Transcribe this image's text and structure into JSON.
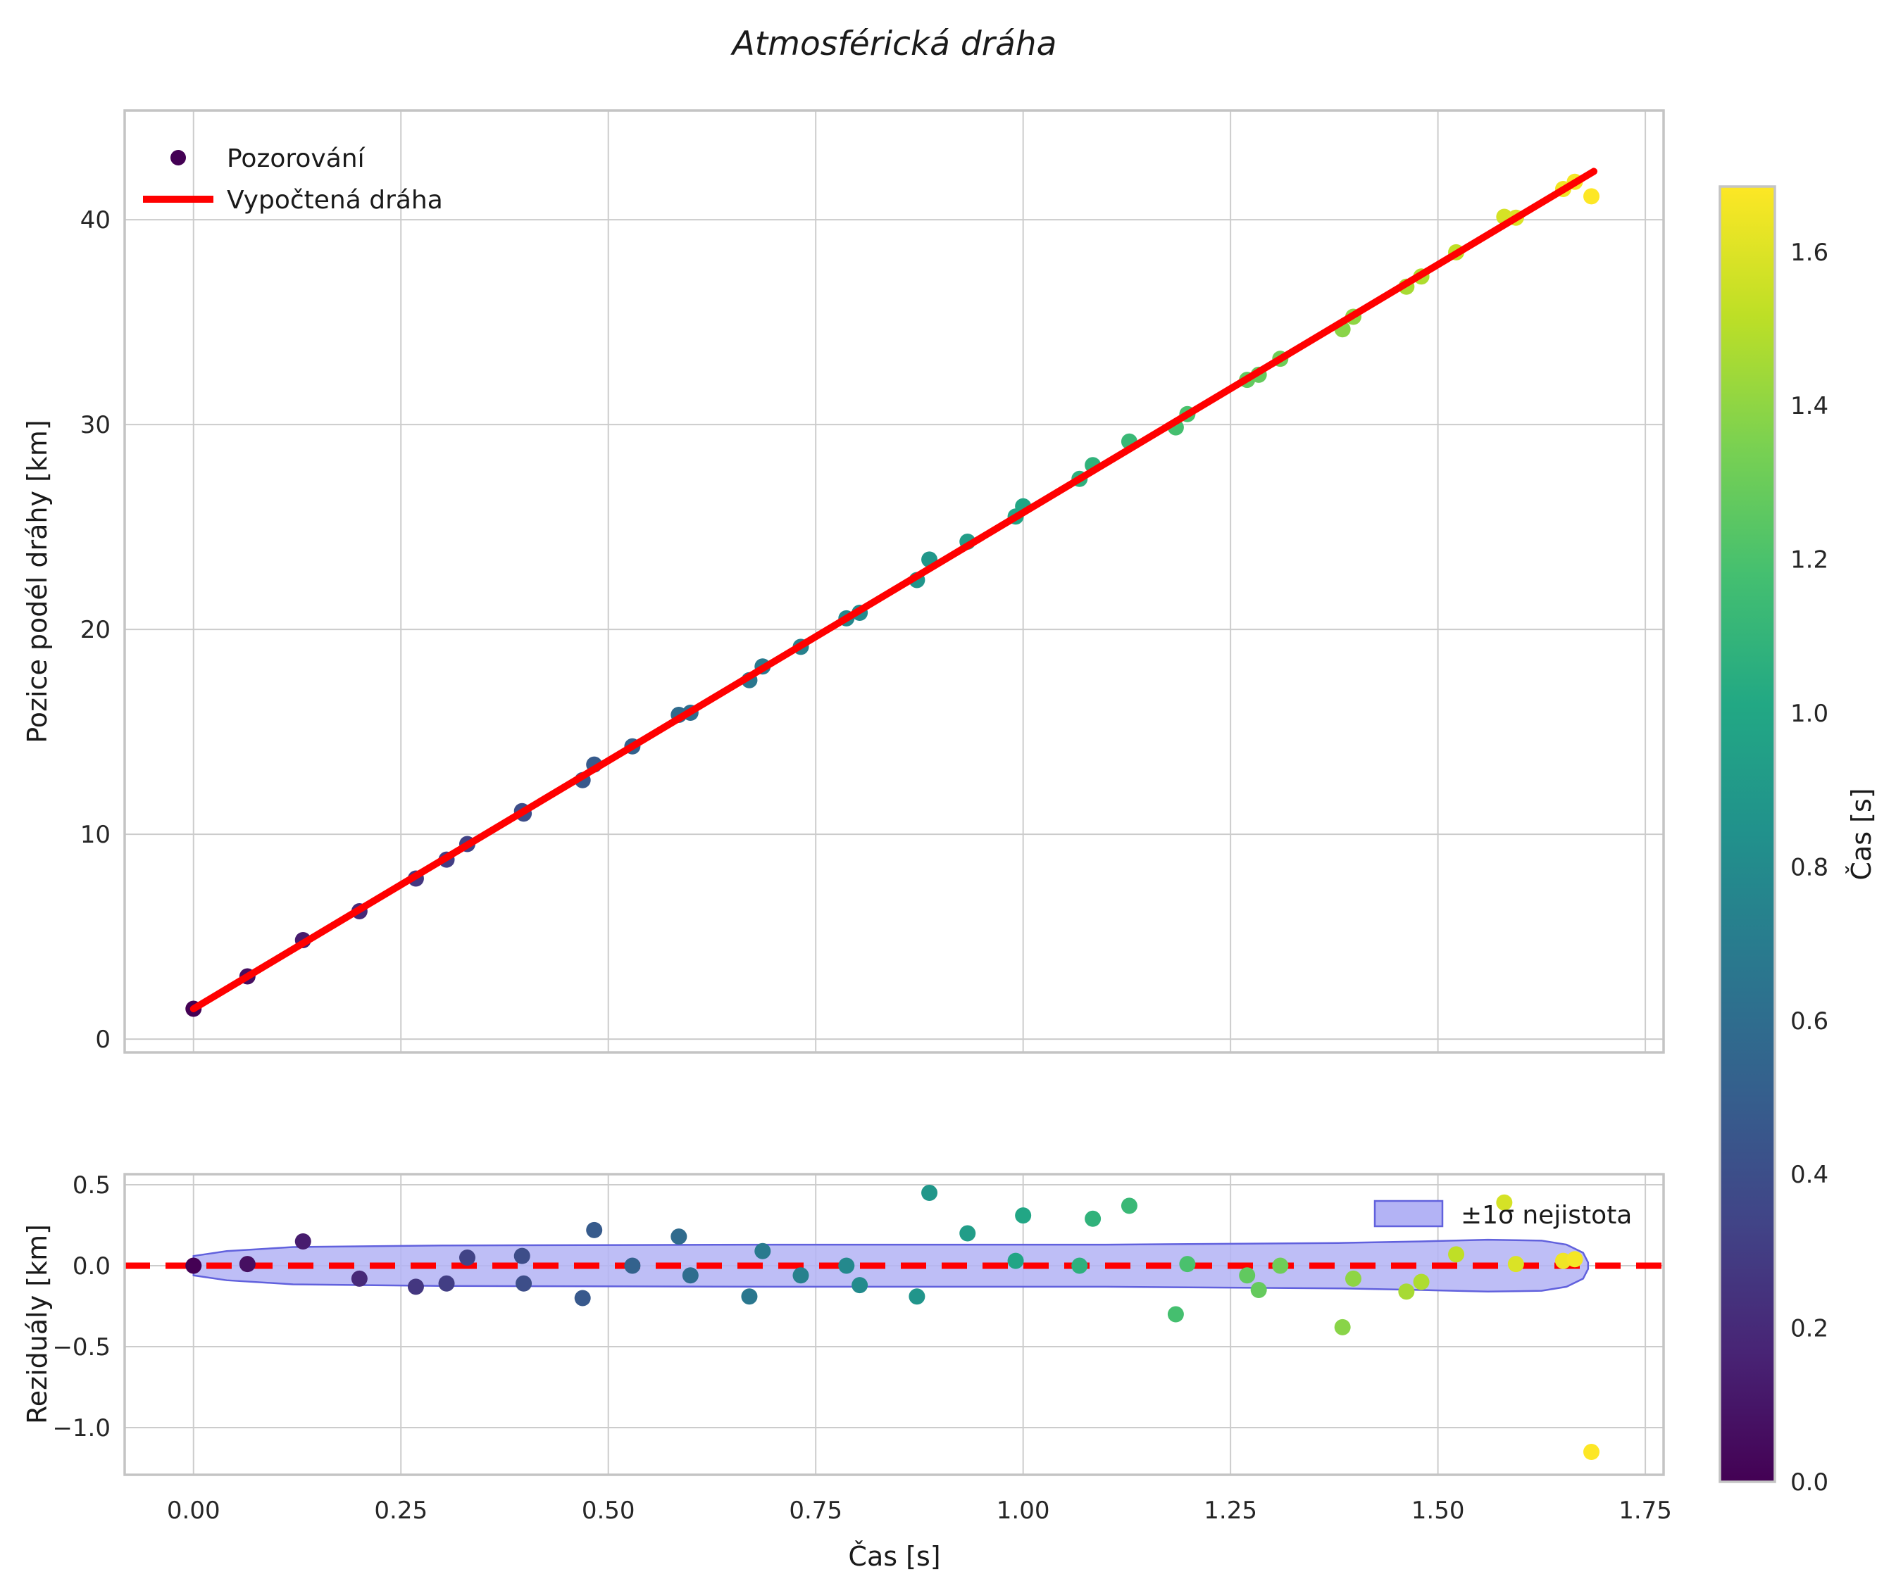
{
  "title": "Atmosférická dráha",
  "colorbar": {
    "label": "Čas [s]",
    "vmin": 0.0,
    "vmax": 1.685,
    "ticks": [
      {
        "value": 0.0,
        "label": "0.0"
      },
      {
        "value": 0.2,
        "label": "0.2"
      },
      {
        "value": 0.4,
        "label": "0.4"
      },
      {
        "value": 0.6,
        "label": "0.6"
      },
      {
        "value": 0.8,
        "label": "0.8"
      },
      {
        "value": 1.0,
        "label": "1.0"
      },
      {
        "value": 1.2,
        "label": "1.2"
      },
      {
        "value": 1.4,
        "label": "1.4"
      },
      {
        "value": 1.6,
        "label": "1.6"
      }
    ],
    "colormap": "viridis"
  },
  "colormap_stops": [
    "#440154",
    "#482475",
    "#414487",
    "#355f8d",
    "#2a788e",
    "#21918c",
    "#22a884",
    "#44bf70",
    "#7ad151",
    "#bddf26",
    "#fde725"
  ],
  "style": {
    "grid_color": "#cccccc",
    "spine_color": "#c4c4c4",
    "fit_line_color": "#ff0000",
    "zero_line_color": "#ff0000",
    "band_fill": "#b3b3f5",
    "band_edge": "#6161dd",
    "background": "#ffffff"
  },
  "chart_data": [
    {
      "id": "trajectory-plot",
      "type": "scatter",
      "title": "Atmosférická dráha",
      "xlabel": "",
      "ylabel": "Pozice podél dráhy [km]",
      "xlim": [
        -0.083,
        1.772
      ],
      "ylim": [
        -0.65,
        45.33
      ],
      "grid": true,
      "legend_position": "upper left",
      "xticks": {
        "values": [
          0.0,
          0.25,
          0.5,
          0.75,
          1.0,
          1.25,
          1.5,
          1.75
        ],
        "labels_visible": false
      },
      "yticks": {
        "values": [
          0,
          10,
          20,
          30,
          40
        ],
        "labels": [
          "0",
          "10",
          "20",
          "30",
          "40"
        ]
      },
      "series": [
        {
          "name": "Pozorování",
          "type": "scatter",
          "color_mode": "viridis-by-time",
          "x": [
            0.0,
            0.065,
            0.132,
            0.2,
            0.268,
            0.305,
            0.33,
            0.396,
            0.398,
            0.469,
            0.483,
            0.529,
            0.585,
            0.599,
            0.67,
            0.686,
            0.732,
            0.787,
            0.803,
            0.872,
            0.887,
            0.933,
            0.991,
            1.0,
            1.068,
            1.084,
            1.128,
            1.184,
            1.198,
            1.27,
            1.284,
            1.31,
            1.385,
            1.398,
            1.462,
            1.48,
            1.522,
            1.58,
            1.594,
            1.651,
            1.665,
            1.685
          ],
          "y": [
            1.48,
            3.06,
            4.83,
            6.24,
            7.84,
            8.76,
            9.52,
            11.13,
            11.01,
            12.64,
            13.4,
            14.29,
            15.83,
            15.93,
            17.52,
            18.19,
            19.15,
            20.54,
            20.81,
            22.41,
            23.41,
            24.28,
            25.51,
            26.01,
            27.35,
            28.02,
            29.17,
            29.86,
            30.51,
            32.18,
            32.43,
            33.21,
            34.65,
            35.26,
            36.73,
            37.23,
            38.41,
            40.14,
            40.1,
            41.5,
            41.85,
            41.14
          ]
        },
        {
          "name": "Vypočtená dráha",
          "type": "line",
          "color": "#ff0000",
          "x": [
            0.0,
            1.688
          ],
          "y": [
            1.48,
            42.36
          ]
        }
      ]
    },
    {
      "id": "residuals-plot",
      "type": "scatter",
      "xlabel": "Čas [s]",
      "ylabel": "Reziduály [km]",
      "xlim": [
        -0.083,
        1.772
      ],
      "ylim": [
        -1.291,
        0.565
      ],
      "grid": true,
      "legend_position": "upper right",
      "xticks": {
        "values": [
          0.0,
          0.25,
          0.5,
          0.75,
          1.0,
          1.25,
          1.5,
          1.75
        ],
        "labels": [
          "0.00",
          "0.25",
          "0.50",
          "0.75",
          "1.00",
          "1.25",
          "1.50",
          "1.75"
        ]
      },
      "yticks": {
        "values": [
          0.5,
          0.0,
          -0.5,
          -1.0
        ],
        "labels": [
          "0.5",
          "0.0",
          "−0.5",
          "−1.0"
        ]
      },
      "series": [
        {
          "name": "Reziduály pozorování",
          "type": "scatter",
          "color_mode": "viridis-by-time",
          "x": [
            0.0,
            0.065,
            0.132,
            0.2,
            0.268,
            0.305,
            0.33,
            0.396,
            0.398,
            0.469,
            0.483,
            0.529,
            0.585,
            0.599,
            0.67,
            0.686,
            0.732,
            0.787,
            0.803,
            0.872,
            0.887,
            0.933,
            0.991,
            1.0,
            1.068,
            1.084,
            1.128,
            1.184,
            1.198,
            1.27,
            1.284,
            1.31,
            1.385,
            1.398,
            1.462,
            1.48,
            1.522,
            1.58,
            1.594,
            1.651,
            1.665,
            1.685
          ],
          "y": [
            0.0,
            0.01,
            0.15,
            -0.08,
            -0.13,
            -0.11,
            0.05,
            0.06,
            -0.11,
            -0.2,
            0.22,
            0.0,
            0.18,
            -0.06,
            -0.19,
            0.09,
            -0.06,
            0.0,
            -0.12,
            -0.19,
            0.45,
            0.2,
            0.03,
            0.31,
            0.0,
            0.29,
            0.37,
            -0.3,
            0.01,
            -0.06,
            -0.15,
            0.0,
            -0.38,
            -0.08,
            -0.16,
            -0.1,
            0.07,
            0.39,
            0.01,
            0.03,
            0.04,
            -1.15
          ]
        },
        {
          "name": "nulová čára",
          "type": "line",
          "style": "dashed",
          "color": "#ff0000",
          "x": [
            -0.083,
            1.772
          ],
          "y": [
            0.0,
            0.0
          ]
        },
        {
          "name": "±1σ nejistota",
          "type": "band",
          "t": [
            0.0,
            0.04,
            0.12,
            0.3,
            0.7,
            1.1,
            1.38,
            1.48,
            1.56,
            1.625,
            1.655,
            1.675,
            1.681
          ],
          "halfwidth": [
            0.06,
            0.09,
            0.115,
            0.125,
            0.13,
            0.13,
            0.14,
            0.15,
            0.16,
            0.155,
            0.13,
            0.08,
            0.02
          ]
        }
      ]
    }
  ]
}
